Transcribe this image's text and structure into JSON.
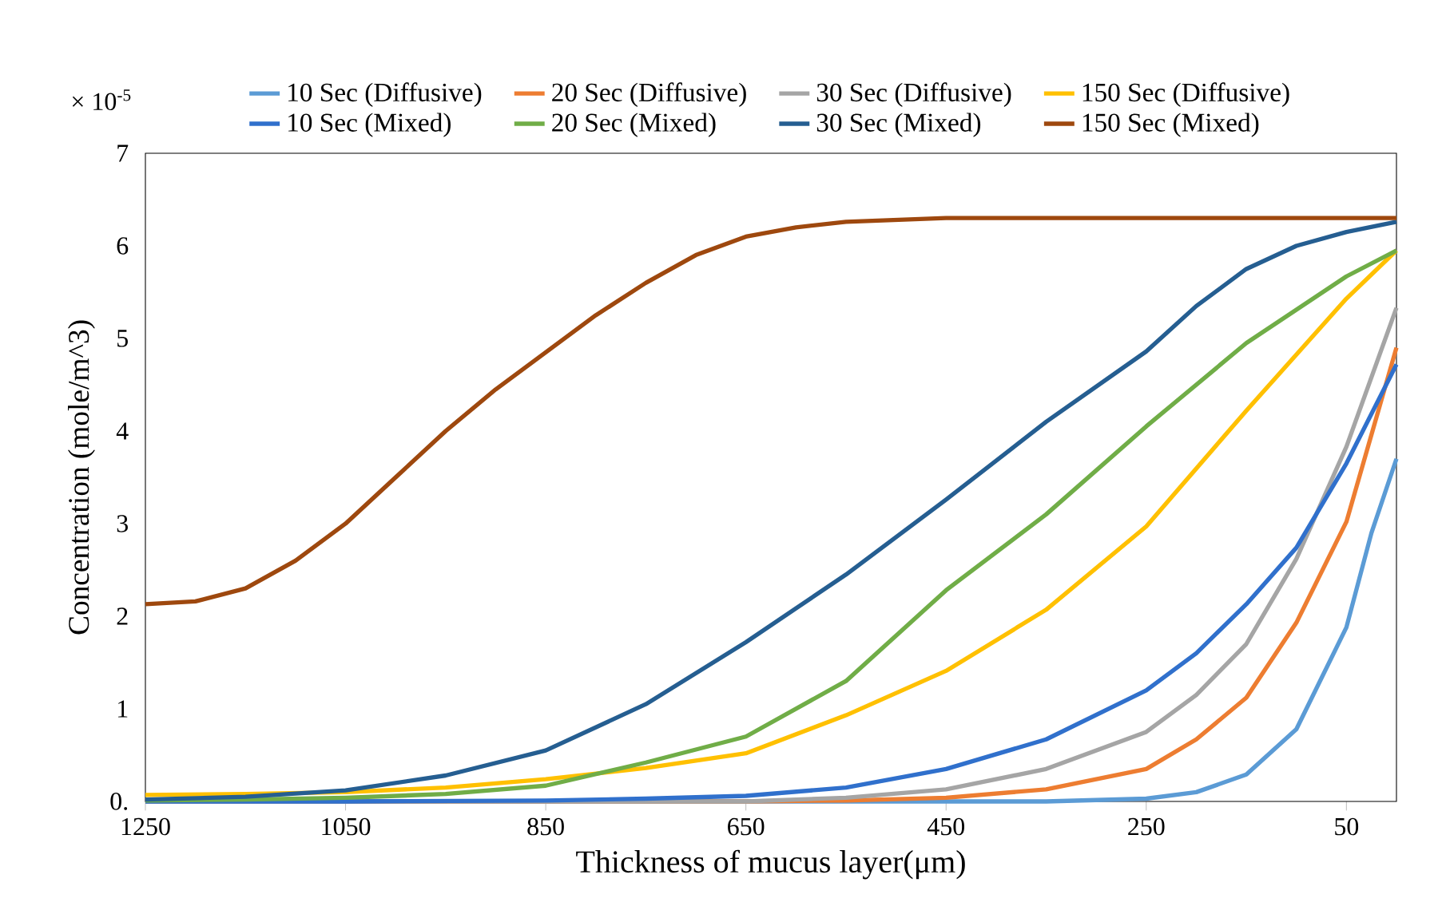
{
  "chart_data": {
    "type": "line",
    "xlabel": "Thickness of mucus layer(μm)",
    "ylabel": "Concentration (mole/m^3)",
    "annotations": [
      "× 10$^{-5}$"
    ],
    "xlim": [
      1250,
      0
    ],
    "xticks": [
      1250,
      1050,
      850,
      650,
      450,
      250,
      50
    ],
    "ylim": [
      0,
      7
    ],
    "yticks": [
      {
        "value": 0,
        "label": "0."
      },
      1,
      2,
      3,
      4,
      5,
      6,
      7
    ],
    "legend": "top",
    "grid": false,
    "series": [
      {
        "name": "10 Sec (Diffusive)",
        "color": "#5b9bd5",
        "x": [
          1250,
          350,
          250,
          200,
          150,
          100,
          50,
          25,
          0
        ],
        "values": [
          0,
          0,
          0.03,
          0.1,
          0.29,
          0.78,
          1.88,
          2.9,
          3.7
        ]
      },
      {
        "name": "20 Sec (Diffusive)",
        "color": "#ed7d31",
        "x": [
          1250,
          650,
          550,
          450,
          350,
          250,
          200,
          150,
          100,
          50,
          0
        ],
        "values": [
          0,
          0,
          0.01,
          0.04,
          0.13,
          0.35,
          0.67,
          1.12,
          1.93,
          3.02,
          4.9
        ]
      },
      {
        "name": "30 Sec (Diffusive)",
        "color": "#a5a5a5",
        "x": [
          1250,
          650,
          550,
          450,
          350,
          250,
          200,
          150,
          100,
          50,
          0
        ],
        "values": [
          0,
          0,
          0.04,
          0.13,
          0.35,
          0.75,
          1.15,
          1.7,
          2.62,
          3.83,
          5.33
        ]
      },
      {
        "name": "150 Sec (Diffusive)",
        "color": "#ffc000",
        "x": [
          1250,
          1150,
          1050,
          950,
          850,
          750,
          650,
          550,
          450,
          350,
          250,
          150,
          50,
          0
        ],
        "values": [
          0.07,
          0.08,
          0.1,
          0.15,
          0.24,
          0.36,
          0.52,
          0.93,
          1.41,
          2.07,
          2.97,
          4.22,
          5.43,
          5.95
        ]
      },
      {
        "name": "10 Sec (Mixed)",
        "color": "#3070cc",
        "x": [
          1250,
          1050,
          850,
          750,
          650,
          550,
          450,
          350,
          250,
          200,
          150,
          100,
          50,
          0
        ],
        "values": [
          0,
          0,
          0.01,
          0.03,
          0.06,
          0.15,
          0.35,
          0.67,
          1.2,
          1.6,
          2.13,
          2.74,
          3.65,
          4.72
        ]
      },
      {
        "name": "20 Sec (Mixed)",
        "color": "#70ad47",
        "x": [
          1250,
          1150,
          1050,
          950,
          850,
          750,
          650,
          550,
          450,
          350,
          250,
          150,
          50,
          0
        ],
        "values": [
          0.01,
          0.02,
          0.04,
          0.08,
          0.17,
          0.42,
          0.7,
          1.3,
          2.28,
          3.1,
          4.05,
          4.95,
          5.67,
          5.95
        ]
      },
      {
        "name": "30 Sec (Mixed)",
        "color": "#255e91",
        "x": [
          1250,
          1150,
          1050,
          950,
          850,
          750,
          650,
          550,
          450,
          350,
          250,
          200,
          150,
          100,
          50,
          0
        ],
        "values": [
          0.02,
          0.05,
          0.12,
          0.28,
          0.55,
          1.05,
          1.72,
          2.45,
          3.26,
          4.1,
          4.86,
          5.35,
          5.75,
          6.0,
          6.15,
          6.26
        ]
      },
      {
        "name": "150 Sec (Mixed)",
        "color": "#9e480e",
        "x": [
          1250,
          1200,
          1150,
          1100,
          1050,
          1000,
          950,
          900,
          850,
          800,
          750,
          700,
          650,
          600,
          550,
          500,
          450,
          350,
          200,
          0
        ],
        "values": [
          2.13,
          2.16,
          2.3,
          2.6,
          3.0,
          3.5,
          4.0,
          4.45,
          4.85,
          5.25,
          5.6,
          5.9,
          6.1,
          6.2,
          6.26,
          6.28,
          6.3,
          6.3,
          6.3,
          6.3
        ]
      }
    ]
  }
}
